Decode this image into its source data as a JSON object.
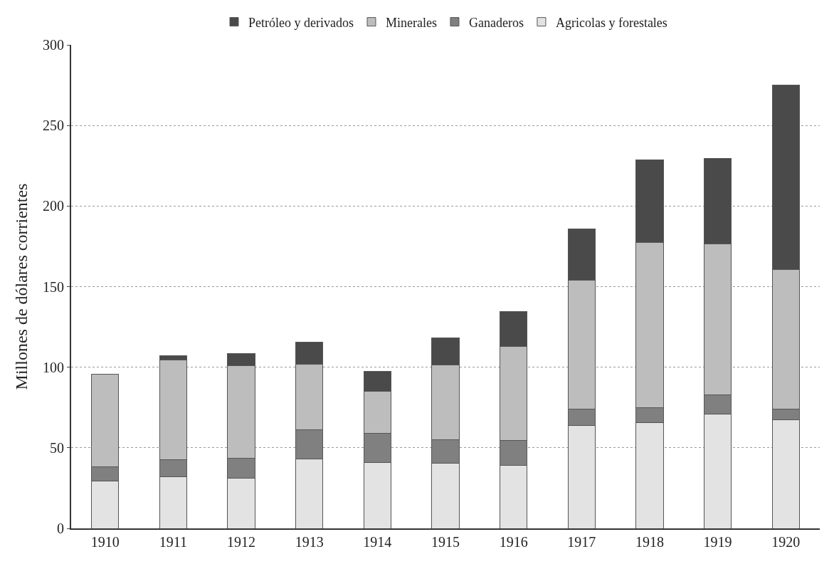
{
  "chart_data": {
    "type": "bar",
    "stacked": true,
    "ylabel": "Millones de dólares corrientes",
    "categories": [
      "1910",
      "1911",
      "1912",
      "1913",
      "1914",
      "1915",
      "1916",
      "1917",
      "1918",
      "1919",
      "1920"
    ],
    "series": [
      {
        "name": "Agricolas y forestales",
        "color": "#e3e3e3",
        "values": [
          29.5,
          32,
          31,
          43,
          41,
          40.5,
          39,
          64,
          65.5,
          71,
          67.5
        ]
      },
      {
        "name": "Ganaderos",
        "color": "#808080",
        "values": [
          8.5,
          10.5,
          12.5,
          18,
          18,
          14.5,
          15.5,
          10,
          9.5,
          12,
          6.5
        ]
      },
      {
        "name": "Minerales",
        "color": "#bdbdbd",
        "values": [
          57.5,
          62,
          57.5,
          41,
          26,
          46.5,
          58.5,
          80,
          102.5,
          93.5,
          86.5
        ]
      },
      {
        "name": "Petróleo y derivados",
        "color": "#4a4a4a",
        "values": [
          0,
          2.5,
          7.5,
          13.5,
          12.5,
          16.5,
          21.5,
          32,
          51,
          53,
          114.5
        ]
      }
    ],
    "ylim": [
      0,
      300
    ],
    "yticks": [
      0,
      50,
      100,
      150,
      200,
      250,
      300
    ],
    "grid": "y",
    "legend": "top"
  }
}
